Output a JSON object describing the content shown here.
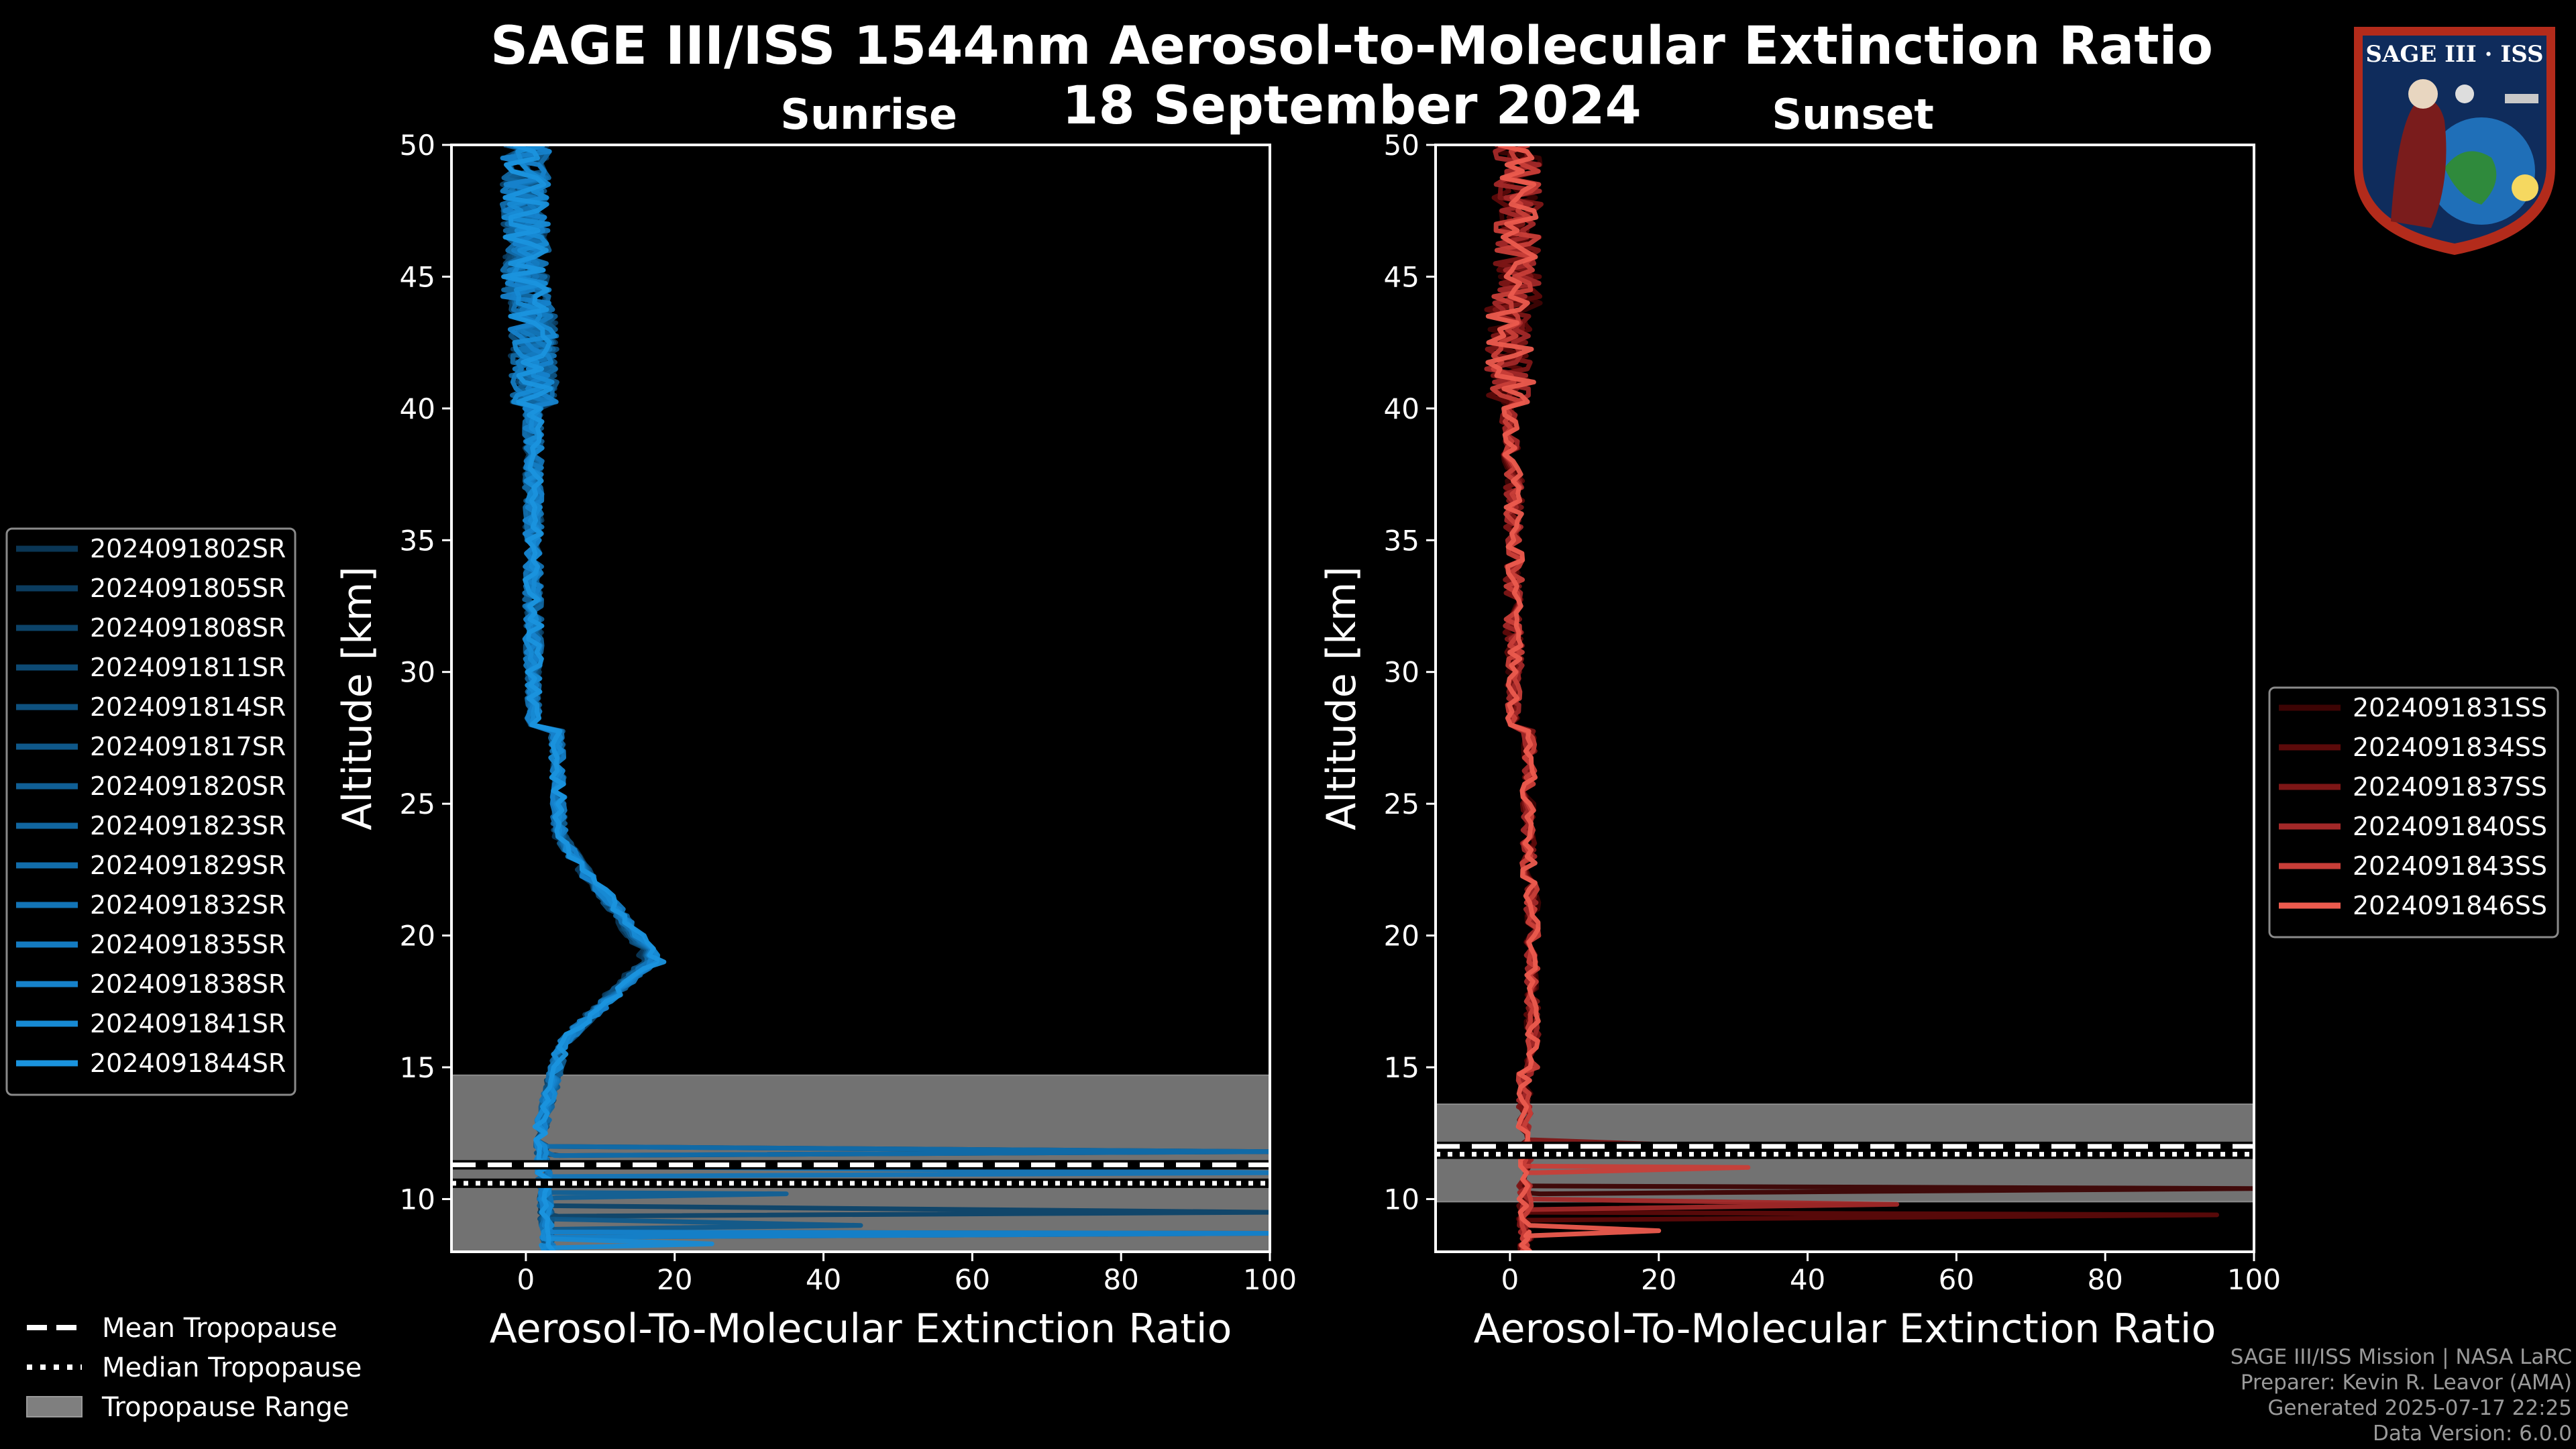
{
  "title_line1": "SAGE III/ISS 1544nm Aerosol-to-Molecular Extinction Ratio",
  "title_line2": "18 September 2024",
  "logo_text": "SAGE III · ISS",
  "chart_data": [
    {
      "type": "line",
      "panel": "Sunrise",
      "title": "Sunrise",
      "xlabel": "Aerosol-To-Molecular Extinction Ratio",
      "ylabel": "Altitude [km]",
      "xlim": [
        -10,
        100
      ],
      "ylim": [
        8,
        50
      ],
      "xticks": [
        0,
        20,
        40,
        60,
        80,
        100
      ],
      "yticks": [
        10,
        15,
        20,
        25,
        30,
        35,
        40,
        45,
        50
      ],
      "tropopause": {
        "range": [
          8,
          14.7
        ],
        "mean": 11.3,
        "median": 10.6
      },
      "legend_position": "left",
      "series": [
        {
          "name": "2024091802SR",
          "color": "#0a3655"
        },
        {
          "name": "2024091805SR",
          "color": "#0b3c5f"
        },
        {
          "name": "2024091808SR",
          "color": "#0c4369"
        },
        {
          "name": "2024091811SR",
          "color": "#0d4a74"
        },
        {
          "name": "2024091814SR",
          "color": "#0e517f"
        },
        {
          "name": "2024091817SR",
          "color": "#0f588a"
        },
        {
          "name": "2024091820SR",
          "color": "#105f95"
        },
        {
          "name": "2024091823SR",
          "color": "#1166a0"
        },
        {
          "name": "2024091829SR",
          "color": "#126dab"
        },
        {
          "name": "2024091832SR",
          "color": "#1374b6"
        },
        {
          "name": "2024091835SR",
          "color": "#147bc1"
        },
        {
          "name": "2024091838SR",
          "color": "#1682cb"
        },
        {
          "name": "2024091841SR",
          "color": "#178ad4"
        },
        {
          "name": "2024091844SR",
          "color": "#1a93de"
        }
      ]
    },
    {
      "type": "line",
      "panel": "Sunset",
      "title": "Sunset",
      "xlabel": "Aerosol-To-Molecular Extinction Ratio",
      "ylabel": "Altitude [km]",
      "xlim": [
        -10,
        100
      ],
      "ylim": [
        8,
        50
      ],
      "xticks": [
        0,
        20,
        40,
        60,
        80,
        100
      ],
      "yticks": [
        10,
        15,
        20,
        25,
        30,
        35,
        40,
        45,
        50
      ],
      "tropopause": {
        "range": [
          9.9,
          13.6
        ],
        "mean": 12.0,
        "median": 11.7
      },
      "legend_position": "right",
      "series": [
        {
          "name": "2024091831SS",
          "color": "#3d0404"
        },
        {
          "name": "2024091834SS",
          "color": "#5c0a0a"
        },
        {
          "name": "2024091837SS",
          "color": "#7d1616"
        },
        {
          "name": "2024091840SS",
          "color": "#a22828"
        },
        {
          "name": "2024091843SS",
          "color": "#c83e38"
        },
        {
          "name": "2024091846SS",
          "color": "#ec5b4e"
        }
      ]
    }
  ],
  "bottom_legend": [
    {
      "label": "Mean Tropopause",
      "style": "dashed"
    },
    {
      "label": "Median Tropopause",
      "style": "dotted"
    },
    {
      "label": "Tropopause Range",
      "style": "patch"
    }
  ],
  "footer": {
    "line1": "SAGE III/ISS Mission | NASA LaRC",
    "line2": "Preparer: Kevin R. Leavor (AMA)",
    "line3": "Generated 2025-07-17 22:25",
    "line4": "Data Version: 6.0.0"
  }
}
